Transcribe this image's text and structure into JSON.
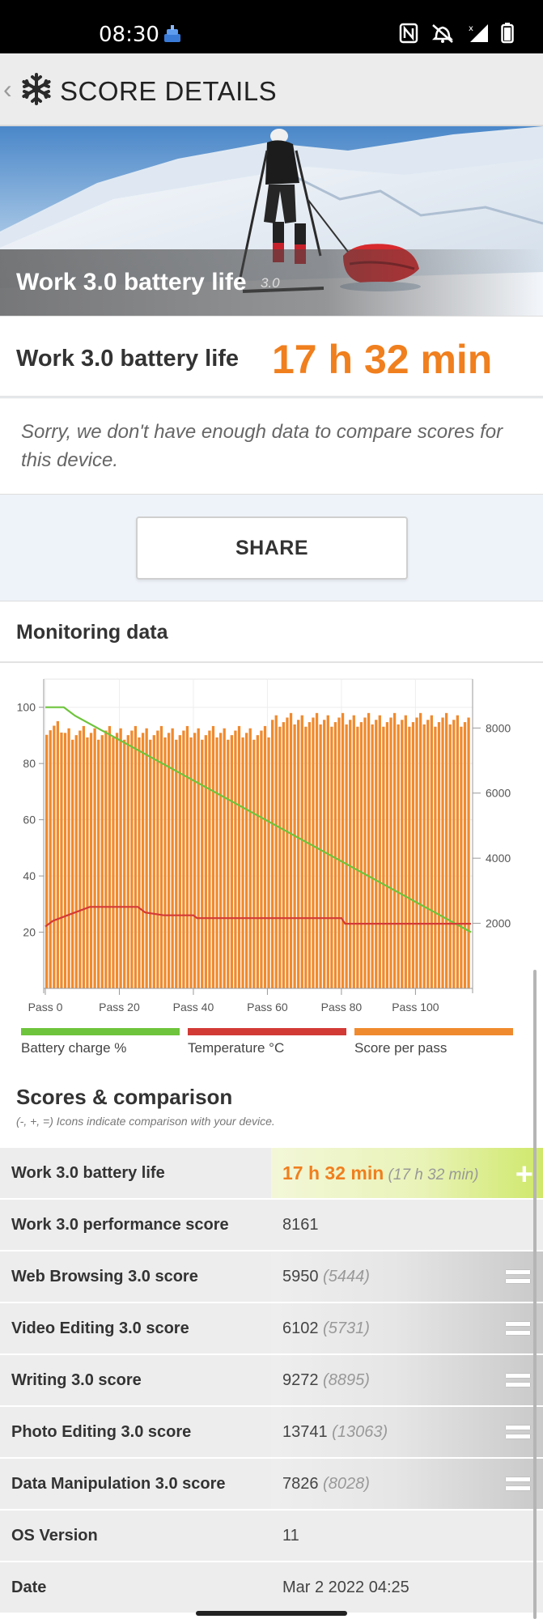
{
  "status_bar": {
    "time": "08:30",
    "icons": [
      "nfc-icon",
      "vibrate-icon",
      "signal-icon",
      "battery-icon"
    ]
  },
  "header": {
    "title": "SCORE DETAILS",
    "back_icon": "chevron-left-icon",
    "logo_icon": "snowflake-icon"
  },
  "hero": {
    "title": "Work 3.0 battery life",
    "version": "3.0"
  },
  "score": {
    "label": "Work 3.0 battery life",
    "value": "17 h 32 min"
  },
  "note": "Sorry, we don't have enough data to compare scores for this device.",
  "share_label": "SHARE",
  "monitoring": {
    "title": "Monitoring data",
    "legend": [
      {
        "label": "Battery charge %",
        "color": "#6ec43c"
      },
      {
        "label": "Temperature °C",
        "color": "#d23a36"
      },
      {
        "label": "Score per pass",
        "color": "#f08a2e"
      }
    ]
  },
  "chart_data": {
    "type": "bar",
    "x_tick_labels": [
      "Pass 0",
      "Pass 20",
      "Pass 40",
      "Pass 60",
      "Pass 80",
      "Pass 100"
    ],
    "x_ticks": [
      0,
      20,
      40,
      60,
      80,
      100
    ],
    "xlim": [
      0,
      115
    ],
    "left_axis": {
      "ticks": [
        100,
        80,
        60,
        40,
        20
      ],
      "ylim": [
        0,
        110
      ]
    },
    "right_axis": {
      "ticks": [
        8000,
        6000,
        4000,
        2000
      ],
      "ylim": [
        0,
        9500
      ]
    },
    "series": [
      {
        "name": "Score per pass",
        "axis": "right",
        "passes": 115,
        "values_approx": {
          "pass_0_4": 8000,
          "pass_5_60": 7850,
          "pass_61_115": 8250
        }
      },
      {
        "name": "Battery charge %",
        "axis": "left",
        "points": [
          [
            0,
            100
          ],
          [
            5,
            100
          ],
          [
            8,
            97
          ],
          [
            115,
            20
          ]
        ]
      },
      {
        "name": "Temperature °C",
        "axis": "left",
        "points": [
          [
            0,
            22
          ],
          [
            2,
            24
          ],
          [
            6,
            26
          ],
          [
            12,
            29
          ],
          [
            25,
            29
          ],
          [
            27,
            27
          ],
          [
            32,
            26
          ],
          [
            40,
            26
          ],
          [
            41,
            25
          ],
          [
            80,
            25
          ],
          [
            81,
            23
          ],
          [
            115,
            23
          ]
        ]
      }
    ],
    "grid": true
  },
  "comparison": {
    "title": "Scores & comparison",
    "subtitle": "(-, +, =) Icons indicate comparison with your device.",
    "rows": [
      {
        "label": "Work 3.0 battery life",
        "value": "17 h 32 min",
        "cmp": "(17 h 32 min)",
        "indicator": "plus-icon",
        "style": "green"
      },
      {
        "label": "Work 3.0 performance score",
        "value": "8161",
        "cmp": "",
        "indicator": "",
        "style": "plain"
      },
      {
        "label": "Web Browsing 3.0 score",
        "value": "5950",
        "cmp": "(5444)",
        "indicator": "equal-icon",
        "style": "grad"
      },
      {
        "label": "Video Editing 3.0 score",
        "value": "6102",
        "cmp": "(5731)",
        "indicator": "equal-icon",
        "style": "grad"
      },
      {
        "label": "Writing 3.0 score",
        "value": "9272",
        "cmp": "(8895)",
        "indicator": "equal-icon",
        "style": "grad"
      },
      {
        "label": "Photo Editing 3.0 score",
        "value": "13741",
        "cmp": "(13063)",
        "indicator": "equal-icon",
        "style": "grad"
      },
      {
        "label": "Data Manipulation 3.0 score",
        "value": "7826",
        "cmp": "(8028)",
        "indicator": "equal-icon",
        "style": "grad"
      },
      {
        "label": "OS Version",
        "value": "11",
        "cmp": "",
        "indicator": "",
        "style": "plain"
      },
      {
        "label": "Date",
        "value": "Mar 2 2022 04:25",
        "cmp": "",
        "indicator": "",
        "style": "plain"
      }
    ]
  }
}
